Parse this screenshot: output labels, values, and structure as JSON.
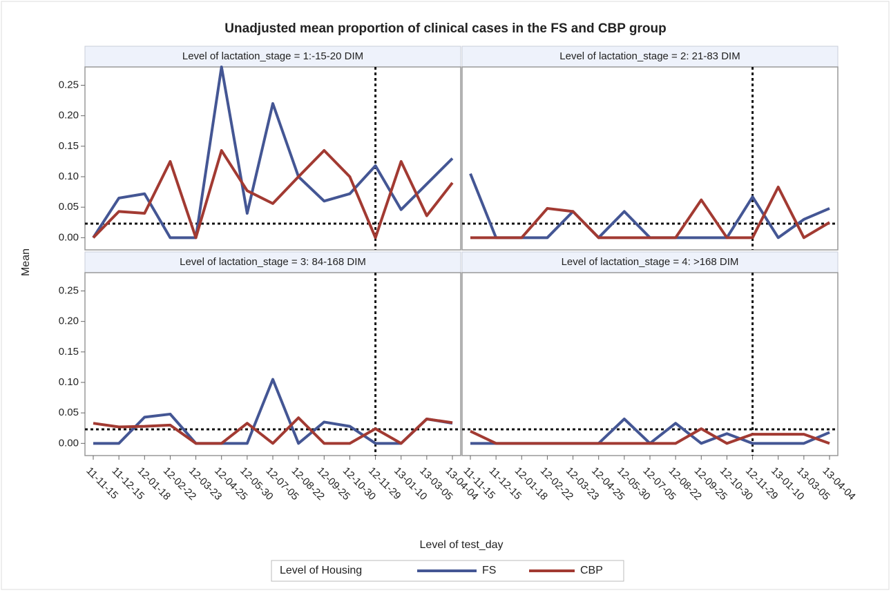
{
  "chart_data": {
    "type": "line",
    "title": "Unadjusted mean proportion of clinical cases in the FS and CBP group",
    "xlabel": "Level of test_day",
    "ylabel": "Mean",
    "legend_title": "Level of Housing",
    "categories": [
      "11-11-15",
      "11-12-15",
      "12-01-18",
      "12-02-22",
      "12-03-23",
      "12-04-25",
      "12-05-30",
      "12-07-05",
      "12-08-22",
      "12-09-25",
      "12-10-30",
      "12-11-29",
      "13-01-10",
      "13-03-05",
      "13-04-04"
    ],
    "ylim": [
      -0.02,
      0.28
    ],
    "yticks": [
      {
        "value": 0,
        "label": "0.00"
      },
      {
        "value": 0.05,
        "label": "0.05"
      },
      {
        "value": 0.1,
        "label": "0.10"
      },
      {
        "value": 0.15,
        "label": "0.15"
      },
      {
        "value": 0.2,
        "label": "0.20"
      },
      {
        "value": 0.25,
        "label": "0.25"
      }
    ],
    "reference_y": 0.023,
    "reference_x": "12-11-29",
    "panels": [
      "Level of lactation_stage = 1:-15-20  DIM",
      "Level of lactation_stage = 2: 21-83  DIM",
      "Level of lactation_stage = 3: 84-168 DIM",
      "Level of lactation_stage = 4: >168 DIM"
    ],
    "series": [
      {
        "name": "FS",
        "color": "#445694",
        "values": [
          [
            0,
            0.065,
            0.072,
            0,
            0,
            0.28,
            0.04,
            0.22,
            0.1,
            0.06,
            0.072,
            0.118,
            0.046,
            0.088,
            0.13
          ],
          [
            0.105,
            0,
            0,
            0,
            0.043,
            0,
            0.043,
            0,
            0,
            0,
            0,
            0.067,
            0,
            0.03,
            0.048
          ],
          [
            0,
            0,
            0.043,
            0.048,
            0,
            0,
            0,
            0.105,
            0,
            0.035,
            0.028,
            0,
            0,
            0.04,
            0.033
          ],
          [
            0,
            0,
            0,
            0,
            0,
            0,
            0.04,
            0,
            0.033,
            0,
            0.016,
            0,
            0,
            0,
            0.018
          ]
        ]
      },
      {
        "name": "CBP",
        "color": "#a23a32",
        "values": [
          [
            0,
            0.043,
            0.04,
            0.125,
            0,
            0.143,
            0.077,
            0.056,
            0.1,
            0.143,
            0.1,
            0,
            0.125,
            0.036,
            0.09
          ],
          [
            0,
            0,
            0,
            0.048,
            0.043,
            0,
            0,
            0,
            0,
            0.062,
            0,
            0,
            0.083,
            0,
            0.025
          ],
          [
            0.033,
            0.027,
            0.028,
            0.03,
            0,
            0,
            0.033,
            0,
            0.042,
            0,
            0,
            0.024,
            0,
            0.04,
            0.034
          ],
          [
            0.02,
            0,
            0,
            0,
            0,
            0,
            0,
            0,
            0,
            0.024,
            0,
            0.015,
            0.015,
            0.015,
            0
          ]
        ]
      }
    ]
  }
}
